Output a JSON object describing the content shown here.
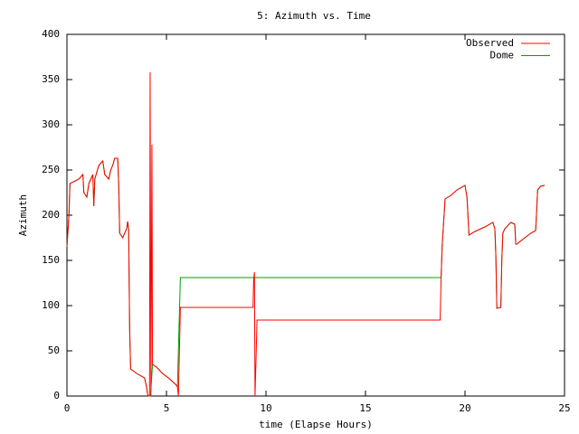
{
  "chart_data": {
    "type": "line",
    "title": "5: Azimuth vs. Time",
    "x_label": "time (Elapse Hours)",
    "y_label": "Azimuth",
    "xlim": [
      0,
      25
    ],
    "xticks": [
      0,
      5,
      10,
      15,
      20,
      25
    ],
    "ylim": [
      0,
      400
    ],
    "yticks": [
      0,
      50,
      100,
      150,
      200,
      250,
      300,
      350,
      400
    ],
    "grid": false,
    "legend": "top-right",
    "series": [
      {
        "name": "Observed",
        "color": "#ff0000",
        "x": [
          0,
          0.1,
          0.15,
          0.6,
          0.8,
          0.85,
          1.0,
          1.1,
          1.3,
          1.35,
          1.4,
          1.6,
          1.8,
          1.9,
          2.1,
          2.2,
          2.3,
          2.4,
          2.55,
          2.6,
          2.65,
          2.8,
          3.0,
          3.05,
          3.1,
          3.15,
          3.2,
          3.5,
          3.9,
          4.0,
          4.05,
          4.1,
          4.15,
          4.18,
          4.22,
          4.27,
          4.3,
          4.5,
          4.8,
          5.1,
          5.5,
          5.55,
          5.6,
          5.7,
          9.35,
          9.38,
          9.42,
          9.45,
          9.5,
          9.55,
          18.75,
          18.8,
          18.85,
          19.0,
          19.3,
          19.6,
          20.0,
          20.1,
          20.2,
          20.5,
          21.0,
          21.4,
          21.5,
          21.55,
          21.6,
          21.8,
          21.85,
          21.9,
          22.0,
          22.3,
          22.5,
          22.55,
          22.6,
          23.0,
          23.3,
          23.55,
          23.65,
          23.8,
          24.0
        ],
        "values": [
          165,
          200,
          235,
          240,
          245,
          225,
          220,
          235,
          245,
          210,
          240,
          255,
          260,
          245,
          240,
          250,
          255,
          263,
          263,
          235,
          180,
          175,
          185,
          193,
          185,
          75,
          30,
          25,
          20,
          10,
          2,
          0,
          0,
          358,
          0,
          278,
          35,
          32,
          25,
          20,
          12,
          10,
          0,
          98,
          98,
          128,
          137,
          0,
          40,
          84,
          84,
          131,
          165,
          218,
          222,
          228,
          233,
          220,
          178,
          182,
          187,
          192,
          185,
          155,
          97,
          98,
          150,
          180,
          185,
          192,
          190,
          168,
          168,
          175,
          180,
          183,
          228,
          232,
          233
        ]
      },
      {
        "name": "Dome",
        "color": "#00a000",
        "x": [
          0,
          0.1,
          0.15,
          0.6,
          0.8,
          0.85,
          1.0,
          1.1,
          1.3,
          1.35,
          1.4,
          1.6,
          1.8,
          1.9,
          2.1,
          2.2,
          2.3,
          2.4,
          2.55,
          2.6,
          2.65,
          2.8,
          3.0,
          3.05,
          3.1,
          3.15,
          3.2,
          3.5,
          3.9,
          4.0,
          4.05,
          4.1,
          4.2,
          4.3,
          4.5,
          4.8,
          5.1,
          5.5,
          5.55,
          5.7,
          18.8,
          18.85,
          19.0,
          19.3,
          19.6,
          20.0,
          20.1,
          20.2,
          20.5,
          21.0,
          21.4,
          21.5,
          21.55,
          21.6,
          21.8,
          21.85,
          21.9,
          22.0,
          22.3,
          22.5,
          22.55,
          22.6,
          23.0,
          23.3,
          23.55,
          23.65,
          23.8,
          24.0
        ],
        "values": [
          165,
          200,
          235,
          240,
          245,
          225,
          220,
          235,
          245,
          210,
          240,
          255,
          260,
          245,
          240,
          250,
          255,
          263,
          263,
          235,
          180,
          175,
          185,
          193,
          185,
          75,
          30,
          25,
          20,
          10,
          2,
          0,
          0,
          35,
          32,
          25,
          20,
          12,
          10,
          131,
          131,
          165,
          218,
          222,
          228,
          233,
          220,
          178,
          182,
          187,
          192,
          185,
          155,
          97,
          98,
          150,
          180,
          185,
          192,
          190,
          168,
          168,
          175,
          180,
          183,
          228,
          232,
          233
        ]
      }
    ]
  }
}
